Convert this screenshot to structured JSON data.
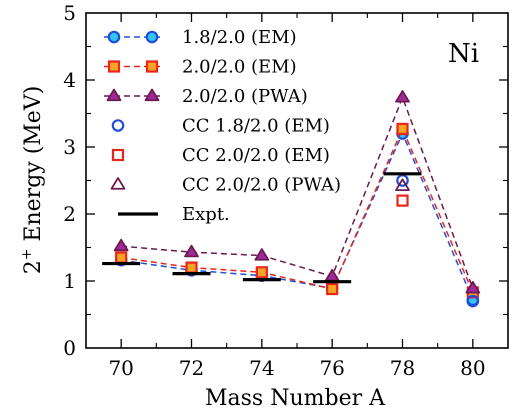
{
  "chart_data": {
    "type": "scatter",
    "panel_label": "Ni",
    "xlabel": "Mass Number A",
    "ylabel_base": "2",
    "ylabel_sup": "+",
    "ylabel_rest": " Energy (MeV)",
    "xlim": [
      69,
      81
    ],
    "ylim": [
      0,
      5
    ],
    "xticks": [
      70,
      72,
      74,
      76,
      78,
      80
    ],
    "yticks": [
      0,
      1,
      2,
      3,
      4,
      5
    ],
    "grid": false,
    "legend_position": "top-left",
    "series": [
      {
        "name": "1.8/2.0 (EM)",
        "kind": "line-marker",
        "marker": "circle-filled",
        "stroke": "#1f4fd6",
        "fill": "#34c6f2",
        "x": [
          70,
          72,
          74,
          76,
          78,
          80
        ],
        "y": [
          1.31,
          1.16,
          1.08,
          0.89,
          3.2,
          0.72
        ]
      },
      {
        "name": "2.0/2.0 (EM)",
        "kind": "line-marker",
        "marker": "square-filled",
        "stroke": "#e8261c",
        "fill": "#f5a523",
        "x": [
          70,
          72,
          74,
          76,
          78,
          80
        ],
        "y": [
          1.35,
          1.2,
          1.13,
          0.88,
          3.27,
          0.83
        ]
      },
      {
        "name": "2.0/2.0 (PWA)",
        "kind": "line-marker",
        "marker": "triangle-filled",
        "stroke": "#6a1b4d",
        "fill": "#a0289a",
        "x": [
          70,
          72,
          74,
          76,
          78,
          80
        ],
        "y": [
          1.52,
          1.43,
          1.38,
          1.07,
          3.74,
          0.89
        ]
      },
      {
        "name": "CC 1.8/2.0 (EM)",
        "kind": "marker",
        "marker": "circle-open",
        "stroke": "#1f4fd6",
        "x": [
          78,
          80
        ],
        "y": [
          2.5,
          0.7
        ]
      },
      {
        "name": "CC 2.0/2.0 (EM)",
        "kind": "marker",
        "marker": "square-open",
        "stroke": "#e8261c",
        "x": [
          78
        ],
        "y": [
          2.2
        ]
      },
      {
        "name": "CC 2.0/2.0 (PWA)",
        "kind": "marker",
        "marker": "triangle-open",
        "stroke": "#6a1b4d",
        "x": [
          78
        ],
        "y": [
          2.42
        ]
      },
      {
        "name": "Expt.",
        "kind": "bar-mark",
        "stroke": "#000000",
        "x": [
          70,
          72,
          74,
          76,
          78
        ],
        "y": [
          1.26,
          1.11,
          1.02,
          0.99,
          2.6
        ]
      }
    ]
  }
}
